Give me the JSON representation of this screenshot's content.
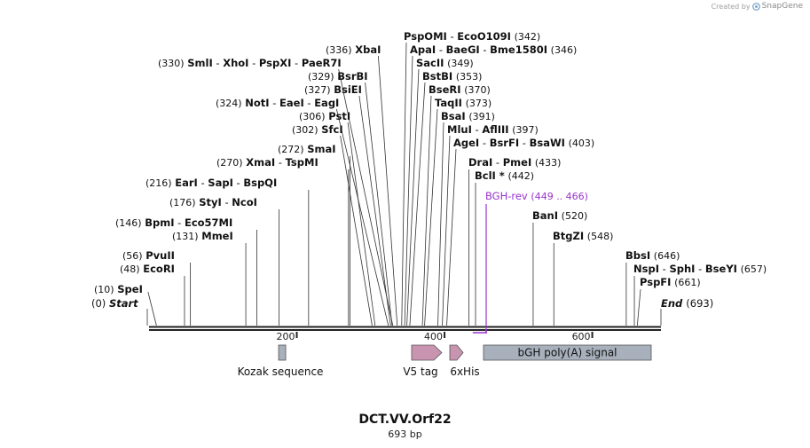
{
  "credit": {
    "prefix": "Created by",
    "brand": "SnapGene",
    "logo_icon": "snapgene-logo-icon"
  },
  "construct": {
    "name": "DCT.VV.Orf22",
    "length_label": "693 bp",
    "length_bp": 693
  },
  "ruler": {
    "ticks": [
      200,
      400,
      600
    ],
    "tick_labels": [
      "200",
      "400",
      "600"
    ]
  },
  "start_label": {
    "name": "Start",
    "pos_label": "(0)"
  },
  "end_label": {
    "name": "End",
    "pos_label": "(693)"
  },
  "colors": {
    "primer": "#9933cc",
    "feature_arrow": "#c994b0",
    "feature_box": "#a8b0bc",
    "feature_stroke": "#555555",
    "line": "#222222"
  },
  "sites": [
    {
      "bp": 10,
      "pos_label": "(10)",
      "names": [
        "SpeI"
      ]
    },
    {
      "bp": 48,
      "pos_label": "(48)",
      "names": [
        "EcoRI"
      ]
    },
    {
      "bp": 56,
      "pos_label": "(56)",
      "names": [
        "PvuII"
      ]
    },
    {
      "bp": 131,
      "pos_label": "(131)",
      "names": [
        "MmeI"
      ]
    },
    {
      "bp": 146,
      "pos_label": "(146)",
      "names": [
        "BpmI",
        "Eco57MI"
      ]
    },
    {
      "bp": 176,
      "pos_label": "(176)",
      "names": [
        "StyI",
        "NcoI"
      ]
    },
    {
      "bp": 216,
      "pos_label": "(216)",
      "names": [
        "EarI",
        "SapI",
        "BspQI"
      ]
    },
    {
      "bp": 270,
      "pos_label": "(270)",
      "names": [
        "XmaI",
        "TspMI"
      ]
    },
    {
      "bp": 272,
      "pos_label": "(272)",
      "names": [
        "SmaI"
      ]
    },
    {
      "bp": 302,
      "pos_label": "(302)",
      "names": [
        "SfcI"
      ]
    },
    {
      "bp": 306,
      "pos_label": "(306)",
      "names": [
        "PstI"
      ]
    },
    {
      "bp": 324,
      "pos_label": "(324)",
      "names": [
        "NotI",
        "EaeI",
        "EagI"
      ]
    },
    {
      "bp": 327,
      "pos_label": "(327)",
      "names": [
        "BsiEI"
      ]
    },
    {
      "bp": 329,
      "pos_label": "(329)",
      "names": [
        "BsrBI"
      ]
    },
    {
      "bp": 330,
      "pos_label": "(330)",
      "names": [
        "SmlI",
        "XhoI",
        "PspXI",
        "PaeR7I"
      ]
    },
    {
      "bp": 336,
      "pos_label": "(336)",
      "names": [
        "XbaI"
      ]
    },
    {
      "bp": 342,
      "pos_label": "(342)",
      "names": [
        "PspOMI",
        "EcoO109I"
      ]
    },
    {
      "bp": 346,
      "pos_label": "(346)",
      "names": [
        "ApaI",
        "BaeGI",
        "Bme1580I"
      ]
    },
    {
      "bp": 349,
      "pos_label": "(349)",
      "names": [
        "SacII"
      ]
    },
    {
      "bp": 353,
      "pos_label": "(353)",
      "names": [
        "BstBI"
      ]
    },
    {
      "bp": 370,
      "pos_label": "(370)",
      "names": [
        "BseRI"
      ]
    },
    {
      "bp": 373,
      "pos_label": "(373)",
      "names": [
        "TaqII"
      ]
    },
    {
      "bp": 391,
      "pos_label": "(391)",
      "names": [
        "BsaI"
      ]
    },
    {
      "bp": 397,
      "pos_label": "(397)",
      "names": [
        "MluI",
        "AflIII"
      ]
    },
    {
      "bp": 403,
      "pos_label": "(403)",
      "names": [
        "AgeI",
        "BsrFI",
        "BsaWI"
      ]
    },
    {
      "bp": 433,
      "pos_label": "(433)",
      "names": [
        "DraI",
        "PmeI"
      ]
    },
    {
      "bp": 442,
      "pos_label": "(442)",
      "names": [
        "BclI *"
      ]
    },
    {
      "bp": 520,
      "pos_label": "(520)",
      "names": [
        "BanI"
      ]
    },
    {
      "bp": 548,
      "pos_label": "(548)",
      "names": [
        "BtgZI"
      ]
    },
    {
      "bp": 646,
      "pos_label": "(646)",
      "names": [
        "BbsI"
      ]
    },
    {
      "bp": 657,
      "pos_label": "(657)",
      "names": [
        "NspI",
        "SphI",
        "BseYI"
      ]
    },
    {
      "bp": 661,
      "pos_label": "(661)",
      "names": [
        "PspFI"
      ]
    }
  ],
  "primer": {
    "name": "BGH-rev",
    "range_label": "(449 .. 466)",
    "start_bp": 449,
    "end_bp": 466
  },
  "features": [
    {
      "name": "Kozak sequence",
      "kind": "box",
      "start_bp": 176,
      "end_bp": 186
    },
    {
      "name": "V5 tag",
      "kind": "arrow",
      "start_bp": 357,
      "end_bp": 399
    },
    {
      "name": "6xHis",
      "kind": "arrow",
      "start_bp": 408,
      "end_bp": 426
    },
    {
      "name": "bGH poly(A) signal",
      "kind": "box",
      "start_bp": 455,
      "end_bp": 680
    }
  ]
}
